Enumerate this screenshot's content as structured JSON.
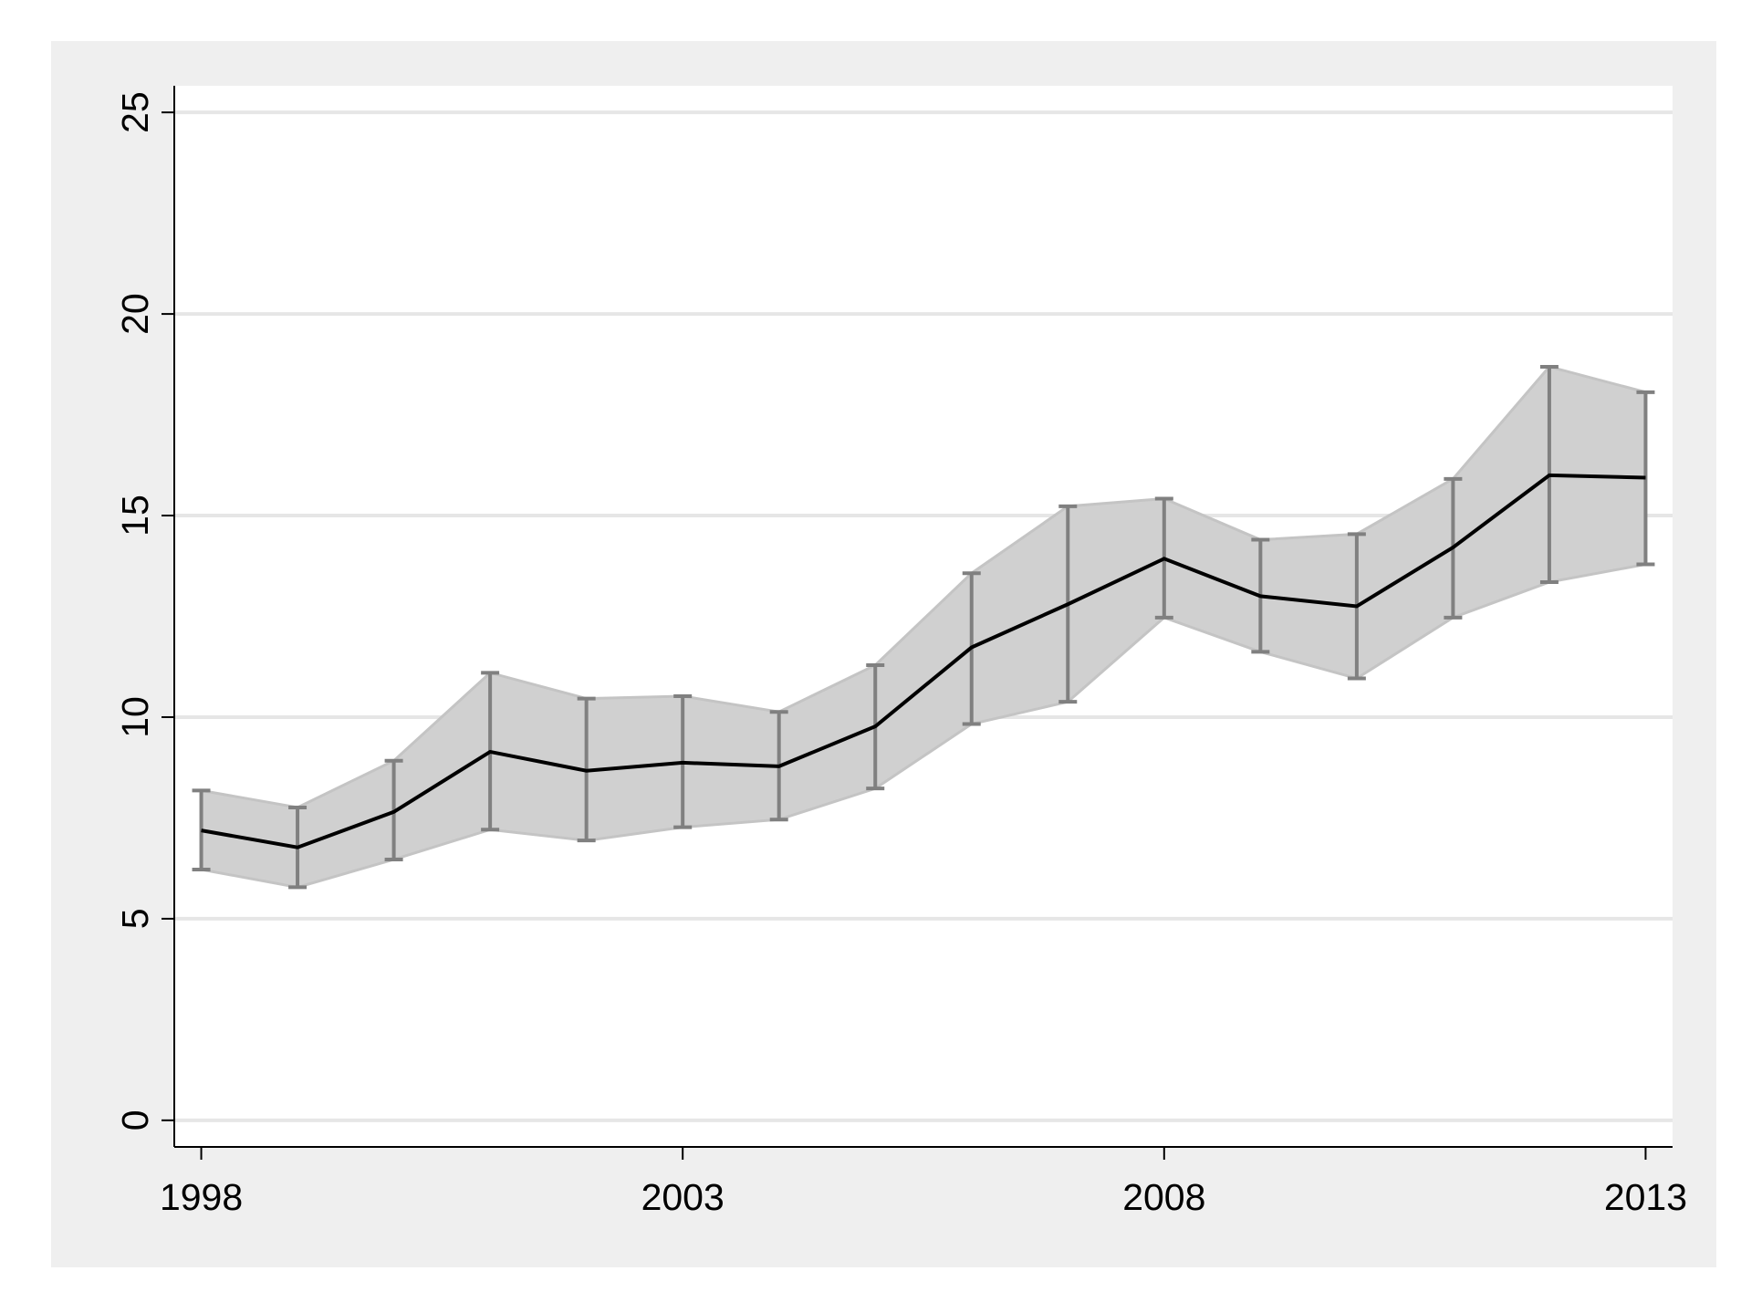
{
  "chart_data": {
    "type": "line",
    "x": [
      1998,
      1999,
      2000,
      2001,
      2002,
      2003,
      2004,
      2005,
      2006,
      2007,
      2008,
      2009,
      2010,
      2011,
      2012,
      2013
    ],
    "series": [
      {
        "color": "#000000",
        "band_color": "#d0d0d0",
        "error_color": "#808080",
        "values": [
          7.19,
          6.77,
          7.65,
          9.14,
          8.67,
          8.87,
          8.78,
          9.77,
          11.73,
          12.8,
          13.93,
          13.0,
          12.75,
          14.21,
          16.0,
          15.94
        ],
        "lower": [
          6.22,
          5.78,
          6.47,
          7.21,
          6.94,
          7.27,
          7.46,
          8.23,
          9.83,
          10.38,
          12.47,
          11.62,
          10.96,
          12.47,
          13.35,
          13.79
        ],
        "upper": [
          8.18,
          7.76,
          8.92,
          11.1,
          10.46,
          10.52,
          10.13,
          11.29,
          13.57,
          15.23,
          15.42,
          14.4,
          14.54,
          15.91,
          18.69,
          18.06
        ]
      }
    ],
    "xlim": [
      1997.72,
      2013.28
    ],
    "xticks": [
      1998,
      2003,
      2008,
      2013
    ],
    "ylim": [
      -0.66,
      25.66
    ],
    "yticks": [
      0,
      5,
      10,
      15,
      20,
      25
    ],
    "grid": true
  }
}
